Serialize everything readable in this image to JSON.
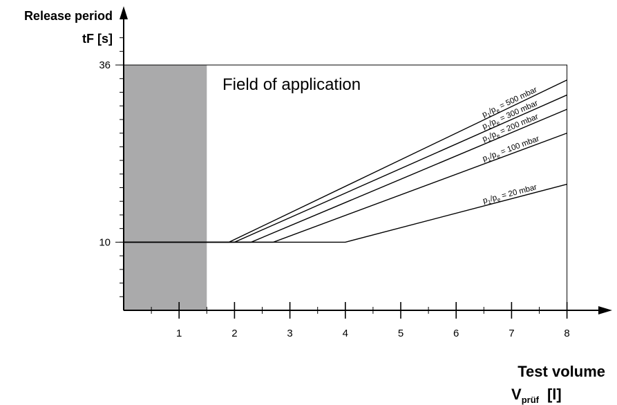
{
  "chart_data": {
    "type": "line",
    "y_title_line1": "Release period",
    "y_title_line2": "tF [s]",
    "x_title_line1": "Test volume",
    "x_title_main": "V",
    "x_title_sub": "prüf",
    "x_title_unit": "[l]",
    "annotation": "Field of application",
    "xlim": [
      0,
      8.5
    ],
    "ylim": [
      0,
      41
    ],
    "x_ticks": [
      1,
      2,
      3,
      4,
      5,
      6,
      7,
      8
    ],
    "x_tick_labels": [
      "1",
      "2",
      "3",
      "4",
      "5",
      "6",
      "7",
      "8"
    ],
    "y_ticks": [
      10,
      36
    ],
    "y_tick_labels": [
      "10",
      "36"
    ],
    "shaded_region": {
      "x": [
        0,
        1.5
      ],
      "y": [
        0,
        36
      ]
    },
    "application_box": {
      "x": [
        0,
        8
      ],
      "y": [
        0,
        36
      ]
    },
    "series": [
      {
        "name": "= 500 mbar",
        "points": [
          [
            0,
            10
          ],
          [
            1.9,
            10
          ],
          [
            8,
            33.8
          ]
        ]
      },
      {
        "name": "= 300 mbar",
        "points": [
          [
            0,
            10
          ],
          [
            2.0,
            10
          ],
          [
            8,
            31.6
          ]
        ]
      },
      {
        "name": "= 200 mbar",
        "points": [
          [
            0,
            10
          ],
          [
            2.3,
            10
          ],
          [
            8,
            29.5
          ]
        ]
      },
      {
        "name": "= 100 mbar",
        "points": [
          [
            0,
            10
          ],
          [
            2.7,
            10
          ],
          [
            8,
            26.0
          ]
        ]
      },
      {
        "name": "= 20 mbar",
        "points": [
          [
            0,
            10
          ],
          [
            4.0,
            10
          ],
          [
            8,
            18.5
          ]
        ]
      }
    ],
    "series_prefix": {
      "p1": "p",
      "sub1": "1",
      "slash": "/",
      "p2": "p",
      "sub2": "e"
    },
    "grid": false,
    "legend": "inline"
  }
}
